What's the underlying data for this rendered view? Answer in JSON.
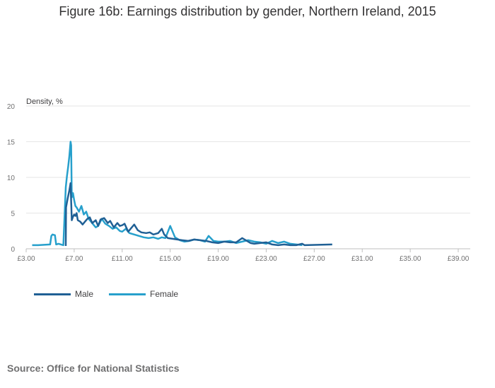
{
  "title": "Figure 16b: Earnings distribution by gender, Northern Ireland, 2015",
  "source": "Source: Office for National Statistics",
  "colors": {
    "male": "#206095",
    "female": "#27A0CC",
    "grid": "#e6e6e6",
    "axis": "#bfbfbf"
  },
  "chart_data": {
    "type": "line",
    "ylabel": "Density, %",
    "xlabel": "",
    "ylim": [
      0,
      20
    ],
    "yticks": [
      "0",
      "5",
      "10",
      "15",
      "20"
    ],
    "xlim": [
      3,
      40
    ],
    "xticks": [
      "£3.00",
      "£7.00",
      "£11.00",
      "£15.00",
      "£19.00",
      "£23.00",
      "£27.00",
      "£31.00",
      "£35.00",
      "£39.00"
    ],
    "legend_position": "bottom-left",
    "grid": true,
    "series": [
      {
        "name": "Male",
        "color": "#206095",
        "x": [
          6.3,
          6.32,
          6.45,
          6.6,
          6.7,
          6.8,
          6.9,
          7.0,
          7.1,
          7.2,
          7.3,
          7.5,
          7.7,
          7.9,
          8.1,
          8.3,
          8.5,
          8.8,
          9.0,
          9.2,
          9.5,
          9.8,
          10.0,
          10.3,
          10.6,
          10.8,
          11.0,
          11.2,
          11.5,
          11.8,
          12.0,
          12.3,
          12.6,
          13.0,
          13.3,
          13.6,
          14.0,
          14.3,
          14.5,
          14.8,
          15.2,
          15.6,
          16.0,
          16.5,
          17.0,
          17.5,
          18.0,
          18.5,
          19.0,
          19.5,
          20.0,
          20.5,
          21.0,
          21.3,
          21.7,
          22.0,
          22.5,
          23.0,
          23.5,
          24.0,
          24.5,
          25.0,
          25.5,
          26.0,
          26.2,
          28.5
        ],
        "y": [
          0.4,
          5.8,
          7.0,
          8.2,
          9.2,
          4.0,
          4.5,
          4.8,
          4.6,
          5.0,
          4.0,
          3.8,
          3.4,
          3.8,
          4.2,
          4.4,
          3.6,
          4.0,
          3.2,
          4.1,
          4.3,
          3.6,
          3.9,
          3.0,
          3.6,
          3.2,
          3.3,
          3.5,
          2.4,
          3.0,
          3.4,
          2.6,
          2.3,
          2.2,
          2.3,
          2.0,
          2.2,
          2.8,
          2.0,
          1.5,
          1.4,
          1.3,
          1.2,
          1.1,
          1.3,
          1.2,
          1.1,
          0.9,
          0.8,
          1.0,
          0.9,
          0.9,
          1.5,
          1.2,
          0.8,
          0.7,
          0.8,
          0.9,
          0.6,
          0.5,
          0.6,
          0.5,
          0.5,
          0.7,
          0.5,
          0.6
        ]
      },
      {
        "name": "Female",
        "color": "#27A0CC",
        "x": [
          3.5,
          4.0,
          5.0,
          5.1,
          5.2,
          5.4,
          5.5,
          5.7,
          5.9,
          6.1,
          6.3,
          6.4,
          6.5,
          6.6,
          6.7,
          6.75,
          6.8,
          6.9,
          7.0,
          7.1,
          7.2,
          7.4,
          7.6,
          7.8,
          8.0,
          8.2,
          8.4,
          8.6,
          8.8,
          9.0,
          9.3,
          9.6,
          9.9,
          10.2,
          10.5,
          10.8,
          11.0,
          11.3,
          11.6,
          12.0,
          12.4,
          12.8,
          13.2,
          13.6,
          14.0,
          14.3,
          14.6,
          15.0,
          15.4,
          15.8,
          16.2,
          16.6,
          17.0,
          17.5,
          17.9,
          18.2,
          18.6,
          19.0,
          19.5,
          20.0,
          20.5,
          21.0,
          21.5,
          22.0,
          22.5,
          23.0,
          23.5,
          24.0,
          24.5,
          25.0,
          26.0
        ],
        "y": [
          0.5,
          0.5,
          0.6,
          1.8,
          2.0,
          1.9,
          0.6,
          0.7,
          0.6,
          0.5,
          8.6,
          10.2,
          11.5,
          13.0,
          15.0,
          14.5,
          7.2,
          7.8,
          6.8,
          6.0,
          5.8,
          5.2,
          6.0,
          4.8,
          5.2,
          4.2,
          3.8,
          3.4,
          3.0,
          3.2,
          4.2,
          3.5,
          3.2,
          2.8,
          3.0,
          2.5,
          2.4,
          2.8,
          2.2,
          2.0,
          1.8,
          1.6,
          1.5,
          1.6,
          1.4,
          1.6,
          1.5,
          3.2,
          1.6,
          1.2,
          1.0,
          1.1,
          1.3,
          1.2,
          1.0,
          1.8,
          1.1,
          1.0,
          1.0,
          1.1,
          0.8,
          1.0,
          1.2,
          1.0,
          0.9,
          0.7,
          1.1,
          0.8,
          1.0,
          0.7,
          0.5
        ]
      }
    ]
  }
}
